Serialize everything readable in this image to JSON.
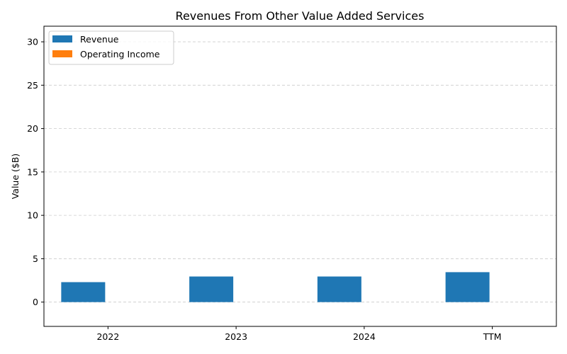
{
  "chart_data": {
    "type": "bar",
    "title": "Revenues From Other Value Added Services",
    "xlabel": "",
    "ylabel": "Value ($B)",
    "categories": [
      "2022",
      "2023",
      "2024",
      "TTM"
    ],
    "series": [
      {
        "name": "Revenue",
        "values": [
          2.3,
          2.95,
          2.95,
          3.45
        ],
        "color": "#1f77b4"
      },
      {
        "name": "Operating Income",
        "values": [
          0,
          0,
          0,
          0
        ],
        "color": "#ff7f0e"
      }
    ],
    "ylim": [
      -2.8,
      31.8
    ],
    "yticks": [
      0,
      5,
      10,
      15,
      20,
      25,
      30
    ],
    "grid": "y-dashed",
    "legend_position": "top-left"
  }
}
